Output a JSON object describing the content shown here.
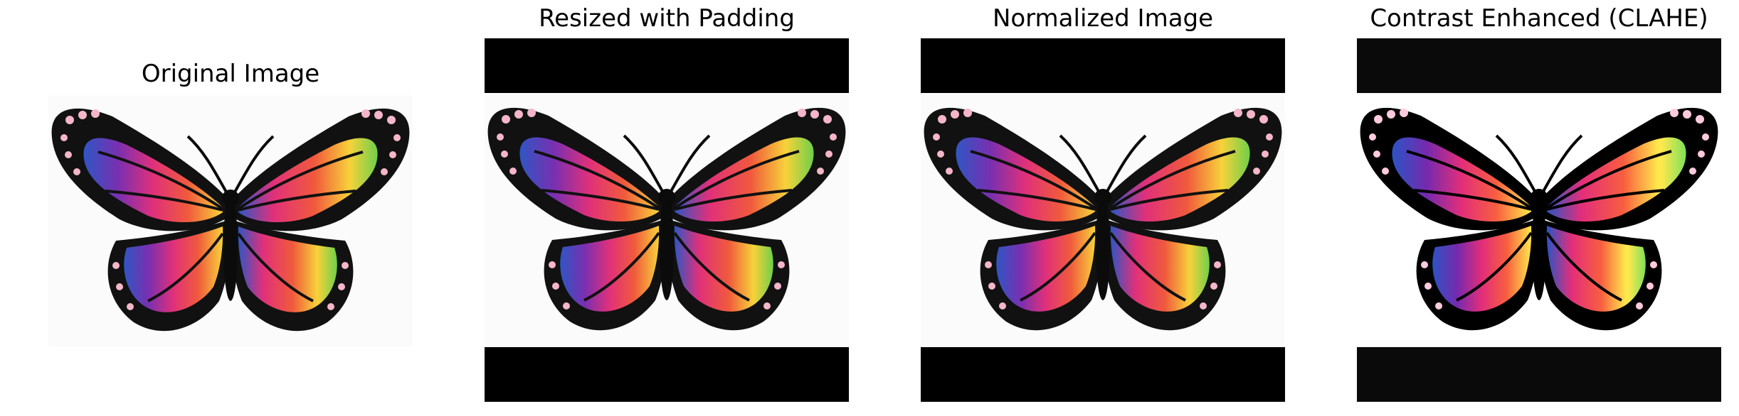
{
  "panels": [
    {
      "id": "original",
      "title": "Original Image",
      "padded": false,
      "band_color": "",
      "filter": "none"
    },
    {
      "id": "resized",
      "title": "Resized with Padding",
      "padded": true,
      "band_color": "#000000",
      "filter": "none"
    },
    {
      "id": "normalized",
      "title": "Normalized Image",
      "padded": true,
      "band_color": "#000000",
      "filter": "none"
    },
    {
      "id": "clahe",
      "title": "Contrast Enhanced (CLAHE)",
      "padded": true,
      "band_color": "#0a0a0a",
      "filter": "contrast(1.15) saturate(0.85) brightness(1.05)"
    }
  ],
  "image": {
    "subject": "butterfly",
    "wing_colors": [
      "#2f56c4",
      "#7a2fb0",
      "#e0307a",
      "#f05a3c",
      "#f7d23a",
      "#6fd04a"
    ]
  }
}
